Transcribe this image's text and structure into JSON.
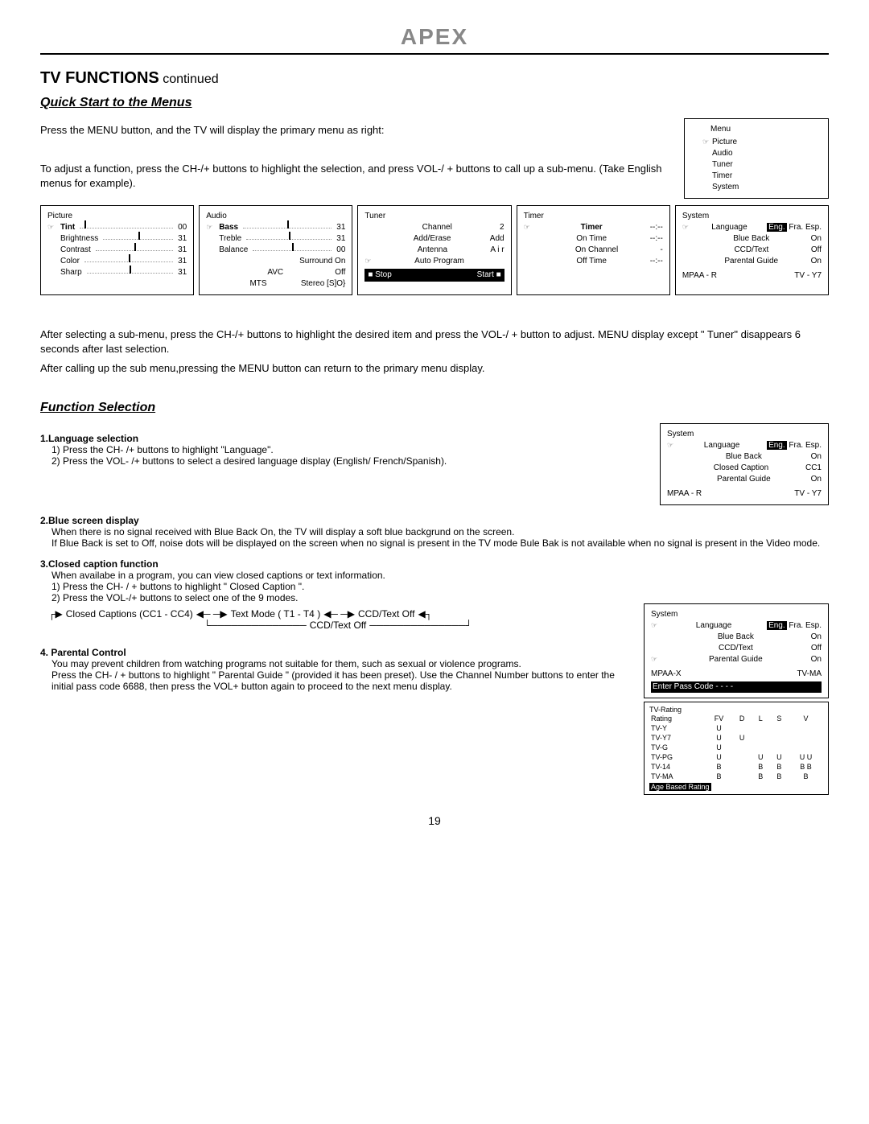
{
  "logo": "APEX",
  "title_main": "TV FUNCTIONS",
  "title_cont": " continued",
  "h2_quick": "Quick Start to the Menus",
  "intro1": "Press the MENU button, and the TV will display the primary menu as right:",
  "intro2": "To adjust a function, press the CH-/+ buttons to highlight the selection, and press VOL-/ + buttons to call up a sub-menu. (Take English menus for example).",
  "primary_menu": {
    "title": "Menu",
    "items": [
      "Picture",
      "Audio",
      "Tuner",
      "Timer",
      "System"
    ]
  },
  "picture": {
    "title": "Picture",
    "rows": [
      {
        "lab": "Tint",
        "val": "00",
        "ptr": true,
        "bold": true,
        "slider": "l"
      },
      {
        "lab": "Brightness",
        "val": "31",
        "slider": "m"
      },
      {
        "lab": "Contrast",
        "val": "31",
        "slider": "m"
      },
      {
        "lab": "Color",
        "val": "31",
        "slider": "m"
      },
      {
        "lab": "Sharp",
        "val": "31",
        "slider": "m"
      }
    ]
  },
  "audio": {
    "title": "Audio",
    "rows": [
      {
        "lab": "Bass",
        "val": "31",
        "ptr": true,
        "bold": true,
        "slider": "m"
      },
      {
        "lab": "Treble",
        "val": "31",
        "slider": "m"
      },
      {
        "lab": "Balance",
        "val": "00",
        "slider": "m"
      },
      {
        "lab": "Surround On",
        "plain": true
      },
      {
        "lab": "AVC",
        "val": "Off"
      },
      {
        "lab": "MTS",
        "val": "Stereo [S]O}"
      }
    ]
  },
  "tuner": {
    "title": "Tuner",
    "rows": [
      {
        "lab": "Channel",
        "val": "2"
      },
      {
        "lab": "Add/Erase",
        "val": "Add"
      },
      {
        "lab": "Antenna",
        "val": "A i r"
      },
      {
        "lab": "Auto Program",
        "ptr": true
      }
    ],
    "bar_l": "■ Stop",
    "bar_r": "Start ■"
  },
  "timer": {
    "title": "Timer",
    "rows": [
      {
        "lab": "Timer",
        "val": "--:--",
        "ptr": true,
        "bold": true
      },
      {
        "lab": "On  Time",
        "val": "--:--"
      },
      {
        "lab": "On  Channel",
        "val": "-"
      },
      {
        "lab": "Off  Time",
        "val": "--:--"
      }
    ]
  },
  "system": {
    "title": "System",
    "lang_label": "Language",
    "lang_sel": "Eng.",
    "lang_rest": " Fra. Esp.",
    "rows": [
      {
        "lab": "Blue Back",
        "val": "On"
      },
      {
        "lab": "CCD/Text",
        "val": "Off"
      },
      {
        "lab": "Parental Guide",
        "val": "On"
      }
    ],
    "mpaa": "MPAA - R",
    "tv": "TV - Y7"
  },
  "after_text1": "After selecting a sub-menu, press the CH-/+ buttons to highlight the desired item and press the VOL-/ + button to adjust. MENU display except \" Tuner\" disappears 6 seconds after last selection.",
  "after_text2": "After calling up the sub menu,pressing the MENU button can return to the primary menu display.",
  "h2_func": "Function Selection",
  "system2": {
    "title": "System",
    "lang_label": "Language",
    "lang_sel": "Eng.",
    "lang_rest": " Fra. Esp.",
    "rows": [
      {
        "lab": "Blue Back",
        "val": "On"
      },
      {
        "lab": "Closed Caption",
        "val": "CC1"
      },
      {
        "lab": "Parental Guide",
        "val": "On"
      }
    ],
    "mpaa": "MPAA - R",
    "tv": "TV - Y7"
  },
  "sec1_h": "1.Language selection",
  "sec1_1": "1) Press  the CH- /+ buttons to highlight  \"Language\".",
  "sec1_2": "2) Press the VOL- /+ buttons to select a desired language display (English/ French/Spanish).",
  "sec2_h": "2.Blue screen display",
  "sec2_1": "When there is no signal received with Blue Back On, the TV will display a soft blue backgrund on the screen.",
  "sec2_2": "If Blue Back is set to Off,  noise dots will be displayed on the screen when no signal is present in the TV mode  Bule Bak is not available when  no signal is present in the Video mode.",
  "sec3_h": "3.Closed caption function",
  "sec3_1": "When availabe in a program, you can view closed captions or text information.",
  "sec3_2": "1) Press the CH- / + buttons  to highlight \" Closed Caption \".",
  "sec3_3": "2) Press the VOL-/+ buttons to select one of the 9 modes.",
  "cc_a": "Closed Captions (CC1 - CC4)",
  "cc_b": "Text Mode ( T1 - T4 )",
  "cc_c": "CCD/Text Off",
  "cc_d": "CCD/Text Off",
  "sec4_h": "4. Parental Control",
  "sec4_1": "You may prevent children from watching  programs not suitable for them, such as sexual or violence programs.",
  "sec4_2": "Press the CH- / + buttons  to highlight \" Parental Guide \" (provided it has been preset). Use the Channel Number buttons to enter the initial pass code 6688, then press the VOL+ button again to proceed to the next menu display.",
  "system3": {
    "title": "System",
    "lang_label": "Language",
    "lang_sel": "Eng.",
    "lang_rest": " Fra. Esp.",
    "rows": [
      {
        "lab": "Blue Back",
        "val": "On"
      },
      {
        "lab": "CCD/Text",
        "val": "Off"
      },
      {
        "lab": "Parental Guide",
        "val": "On",
        "ptr": true
      }
    ],
    "mpaa": "MPAA-X",
    "tv": "TV-MA",
    "pass": "Enter Pass Code  - - - -"
  },
  "rating": {
    "title": "TV-Rating",
    "head": [
      "Rating",
      "FV",
      "D",
      "L",
      "S",
      "V"
    ],
    "rows": [
      [
        "TV-Y",
        "U",
        "",
        "",
        "",
        ""
      ],
      [
        "TV-Y7",
        "U",
        "U",
        "",
        "",
        ""
      ],
      [
        "TV-G",
        "U",
        "",
        "",
        "",
        ""
      ],
      [
        "TV-PG",
        "U",
        "",
        "U",
        "U",
        "U U"
      ],
      [
        "TV-14",
        "B",
        "",
        "B",
        "B",
        "B B"
      ],
      [
        "TV-MA",
        "B",
        "",
        "B",
        "B",
        "B"
      ]
    ],
    "footer": "Age  Based Rating"
  },
  "page": "19"
}
